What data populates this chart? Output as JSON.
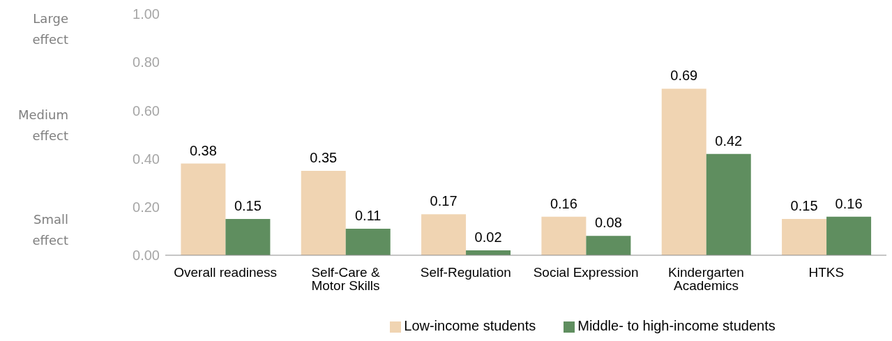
{
  "chart_data": {
    "type": "bar",
    "categories": [
      "Overall readiness",
      "Self-Care & Motor Skills",
      "Self-Regulation",
      "Social Expression",
      "Kindergarten Academics",
      "HTKS"
    ],
    "series": [
      {
        "name": "Low-income students",
        "color": "#f0d4b2",
        "values": [
          0.38,
          0.35,
          0.17,
          0.16,
          0.69,
          0.15
        ]
      },
      {
        "name": "Middle- to high-income students",
        "color": "#5f8e5f",
        "values": [
          0.15,
          0.11,
          0.02,
          0.08,
          0.42,
          0.16
        ]
      }
    ],
    "ylim": [
      0,
      1
    ],
    "yticks": [
      {
        "value": 0,
        "label": "0.00"
      },
      {
        "value": 0.2,
        "label": "0.20"
      },
      {
        "value": 0.4,
        "label": "0.40"
      },
      {
        "value": 0.6,
        "label": "0.60"
      },
      {
        "value": 0.8,
        "label": "0.80"
      },
      {
        "value": 1,
        "label": "1.00"
      }
    ],
    "annotations": [
      "Large effect",
      "Medium effect",
      "Small effect"
    ],
    "data_labels": true,
    "grid": false,
    "legend": "bottom"
  }
}
